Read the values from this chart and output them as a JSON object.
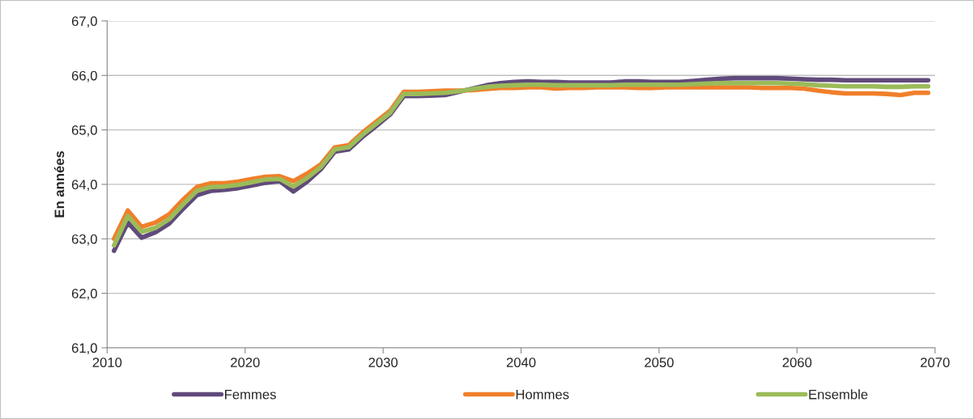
{
  "chart_data": {
    "type": "line",
    "ylabel": "En années",
    "x": [
      2010.5,
      2011.5,
      2012.5,
      2013.5,
      2014.5,
      2015.5,
      2016.5,
      2017.5,
      2018.5,
      2019.5,
      2020.5,
      2021.5,
      2022.5,
      2023.5,
      2024.5,
      2025.5,
      2026.5,
      2027.5,
      2028.5,
      2029.5,
      2030.5,
      2031.5,
      2032.5,
      2033.5,
      2034.5,
      2035.5,
      2036.5,
      2037.5,
      2038.5,
      2039.5,
      2040.5,
      2041.5,
      2042.5,
      2043.5,
      2044.5,
      2045.5,
      2046.5,
      2047.5,
      2048.5,
      2049.5,
      2050.5,
      2051.5,
      2052.5,
      2053.5,
      2054.5,
      2055.5,
      2056.5,
      2057.5,
      2058.5,
      2059.5,
      2060.5,
      2061.5,
      2062.5,
      2063.5,
      2064.5,
      2065.5,
      2066.5,
      2067.5,
      2068.5,
      2069.5
    ],
    "series": [
      {
        "name": "Femmes",
        "color": "#604a7b",
        "values": [
          62.78,
          63.3,
          63.02,
          63.12,
          63.28,
          63.55,
          63.8,
          63.88,
          63.9,
          63.93,
          63.98,
          64.03,
          64.06,
          63.87,
          64.05,
          64.28,
          64.6,
          64.64,
          64.87,
          65.07,
          65.28,
          65.62,
          65.62,
          65.63,
          65.64,
          65.7,
          65.76,
          65.82,
          65.86,
          65.88,
          65.89,
          65.88,
          65.88,
          65.87,
          65.87,
          65.87,
          65.87,
          65.89,
          65.89,
          65.88,
          65.88,
          65.88,
          65.9,
          65.92,
          65.94,
          65.95,
          65.95,
          65.95,
          65.95,
          65.94,
          65.93,
          65.92,
          65.92,
          65.91,
          65.91,
          65.91,
          65.91,
          65.91,
          65.91,
          65.91
        ]
      },
      {
        "name": "Hommes",
        "color": "#f07f2a",
        "values": [
          63.0,
          63.52,
          63.22,
          63.3,
          63.45,
          63.72,
          63.95,
          64.02,
          64.02,
          64.05,
          64.1,
          64.14,
          64.15,
          64.06,
          64.2,
          64.37,
          64.68,
          64.72,
          64.95,
          65.15,
          65.35,
          65.7,
          65.7,
          65.71,
          65.72,
          65.72,
          65.73,
          65.75,
          65.77,
          65.77,
          65.78,
          65.78,
          65.76,
          65.77,
          65.77,
          65.78,
          65.78,
          65.78,
          65.77,
          65.77,
          65.78,
          65.78,
          65.78,
          65.78,
          65.78,
          65.78,
          65.78,
          65.77,
          65.77,
          65.77,
          65.76,
          65.72,
          65.69,
          65.67,
          65.67,
          65.67,
          65.66,
          65.64,
          65.68,
          65.68
        ]
      },
      {
        "name": "Ensemble",
        "color": "#9bbb59",
        "values": [
          62.88,
          63.42,
          63.13,
          63.2,
          63.36,
          63.63,
          63.88,
          63.95,
          63.96,
          63.99,
          64.04,
          64.09,
          64.1,
          63.96,
          64.12,
          64.32,
          64.64,
          64.68,
          64.91,
          65.11,
          65.31,
          65.66,
          65.66,
          65.67,
          65.68,
          65.71,
          65.75,
          65.79,
          65.81,
          65.82,
          65.83,
          65.83,
          65.82,
          65.82,
          65.82,
          65.82,
          65.82,
          65.83,
          65.83,
          65.83,
          65.83,
          65.83,
          65.84,
          65.85,
          65.86,
          65.86,
          65.86,
          65.86,
          65.86,
          65.85,
          65.84,
          65.82,
          65.81,
          65.8,
          65.8,
          65.8,
          65.79,
          65.79,
          65.8,
          65.8
        ]
      }
    ],
    "xlim": [
      2010,
      2070
    ],
    "xticks": [
      2010,
      2020,
      2030,
      2040,
      2050,
      2060,
      2070
    ],
    "ylim": [
      61,
      67
    ],
    "yticks": [
      {
        "value": 61,
        "label": "61,0"
      },
      {
        "value": 62,
        "label": "62,0"
      },
      {
        "value": 63,
        "label": "63,0"
      },
      {
        "value": 64,
        "label": "64,0"
      },
      {
        "value": 65,
        "label": "65,0"
      },
      {
        "value": 66,
        "label": "66,0"
      },
      {
        "value": 67,
        "label": "67,0"
      }
    ],
    "grid": "y",
    "legend": "bottom",
    "line_style": "solid",
    "marker": "none"
  }
}
